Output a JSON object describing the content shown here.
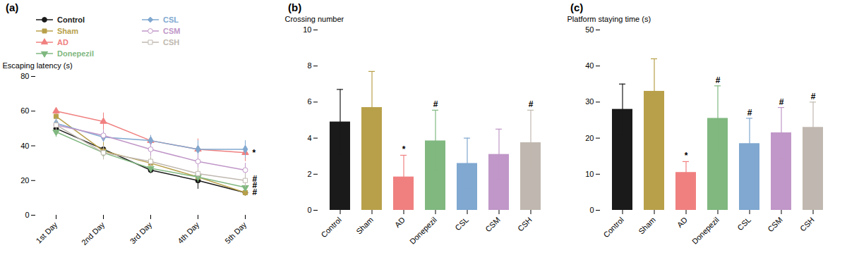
{
  "chart_data": [
    {
      "type": "line",
      "title": "(a)",
      "ylabel": "Escaping latency (s)",
      "categories": [
        "1st Day",
        "2nd Day",
        "3rd Day",
        "4th Day",
        "5th Day"
      ],
      "ylim": [
        0,
        80
      ],
      "yticks": [
        0,
        20,
        40,
        60,
        80
      ],
      "grid": false,
      "legend": "top",
      "series": [
        {
          "name": "Control",
          "color": "#1a1a1a",
          "marker": "circle",
          "values": [
            50,
            38,
            26,
            20,
            13
          ],
          "errors": [
            3,
            3,
            2,
            5,
            2
          ]
        },
        {
          "name": "Sham",
          "color": "#b8a04a",
          "marker": "square",
          "values": [
            57,
            37,
            30,
            22,
            13
          ],
          "errors": [
            3,
            5,
            2,
            3,
            2
          ]
        },
        {
          "name": "AD",
          "color": "#f08080",
          "marker": "triangle-up",
          "values": [
            60,
            54,
            43,
            38,
            36
          ],
          "errors": [
            2,
            5,
            3,
            6,
            5
          ]
        },
        {
          "name": "Donepezil",
          "color": "#80b880",
          "marker": "triangle-down",
          "values": [
            48,
            36,
            27,
            22,
            16
          ],
          "errors": [
            3,
            3,
            2,
            3,
            2
          ]
        },
        {
          "name": "CSL",
          "color": "#80a8d0",
          "marker": "diamond",
          "values": [
            53,
            45,
            43,
            38,
            38
          ],
          "errors": [
            3,
            3,
            3,
            5,
            5
          ]
        },
        {
          "name": "CSM",
          "color": "#c097c8",
          "marker": "open-circle",
          "values": [
            52,
            46,
            38,
            31,
            26
          ],
          "errors": [
            3,
            3,
            4,
            4,
            4
          ]
        },
        {
          "name": "CSH",
          "color": "#c0b8b0",
          "marker": "open-square",
          "values": [
            52,
            36,
            31,
            24,
            20
          ],
          "errors": [
            3,
            4,
            3,
            3,
            4
          ]
        }
      ],
      "annotations": [
        {
          "text": "*",
          "x": "5th Day",
          "y": 36
        },
        {
          "text": "#",
          "x": "5th Day",
          "y": 21
        },
        {
          "text": "#",
          "x": "5th Day",
          "y": 17
        },
        {
          "text": "#",
          "x": "5th Day",
          "y": 13
        }
      ]
    },
    {
      "type": "bar",
      "title": "(b)",
      "ylabel": "Crossing number",
      "categories": [
        "Control",
        "Sham",
        "AD",
        "Donepezil",
        "CSL",
        "CSM",
        "CSH"
      ],
      "values": [
        4.9,
        5.7,
        1.85,
        3.85,
        2.6,
        3.1,
        3.75
      ],
      "errors": [
        1.8,
        2.0,
        1.2,
        1.7,
        1.4,
        1.4,
        1.8
      ],
      "colors": [
        "#1a1a1a",
        "#b8a04a",
        "#f08080",
        "#80b880",
        "#80a8d0",
        "#c097c8",
        "#c0b8b0"
      ],
      "ylim": [
        0,
        10
      ],
      "yticks": [
        0,
        2,
        4,
        6,
        8,
        10
      ],
      "grid": false,
      "annotations": [
        {
          "category": "AD",
          "text": "*"
        },
        {
          "category": "Donepezil",
          "text": "#"
        },
        {
          "category": "CSH",
          "text": "#"
        }
      ]
    },
    {
      "type": "bar",
      "title": "(c)",
      "ylabel": "Platform staying time (s)",
      "categories": [
        "Control",
        "Sham",
        "AD",
        "Donepezil",
        "CSL",
        "CSM",
        "CSH"
      ],
      "values": [
        28,
        33,
        10.5,
        25.5,
        18.5,
        21.5,
        23
      ],
      "errors": [
        7,
        9,
        3,
        9,
        7,
        7,
        7
      ],
      "colors": [
        "#1a1a1a",
        "#b8a04a",
        "#f08080",
        "#80b880",
        "#80a8d0",
        "#c097c8",
        "#c0b8b0"
      ],
      "ylim": [
        0,
        50
      ],
      "yticks": [
        0,
        10,
        20,
        30,
        40,
        50
      ],
      "grid": false,
      "annotations": [
        {
          "category": "AD",
          "text": "*"
        },
        {
          "category": "Donepezil",
          "text": "#"
        },
        {
          "category": "CSL",
          "text": "#"
        },
        {
          "category": "CSM",
          "text": "#"
        },
        {
          "category": "CSH",
          "text": "#"
        }
      ]
    }
  ]
}
